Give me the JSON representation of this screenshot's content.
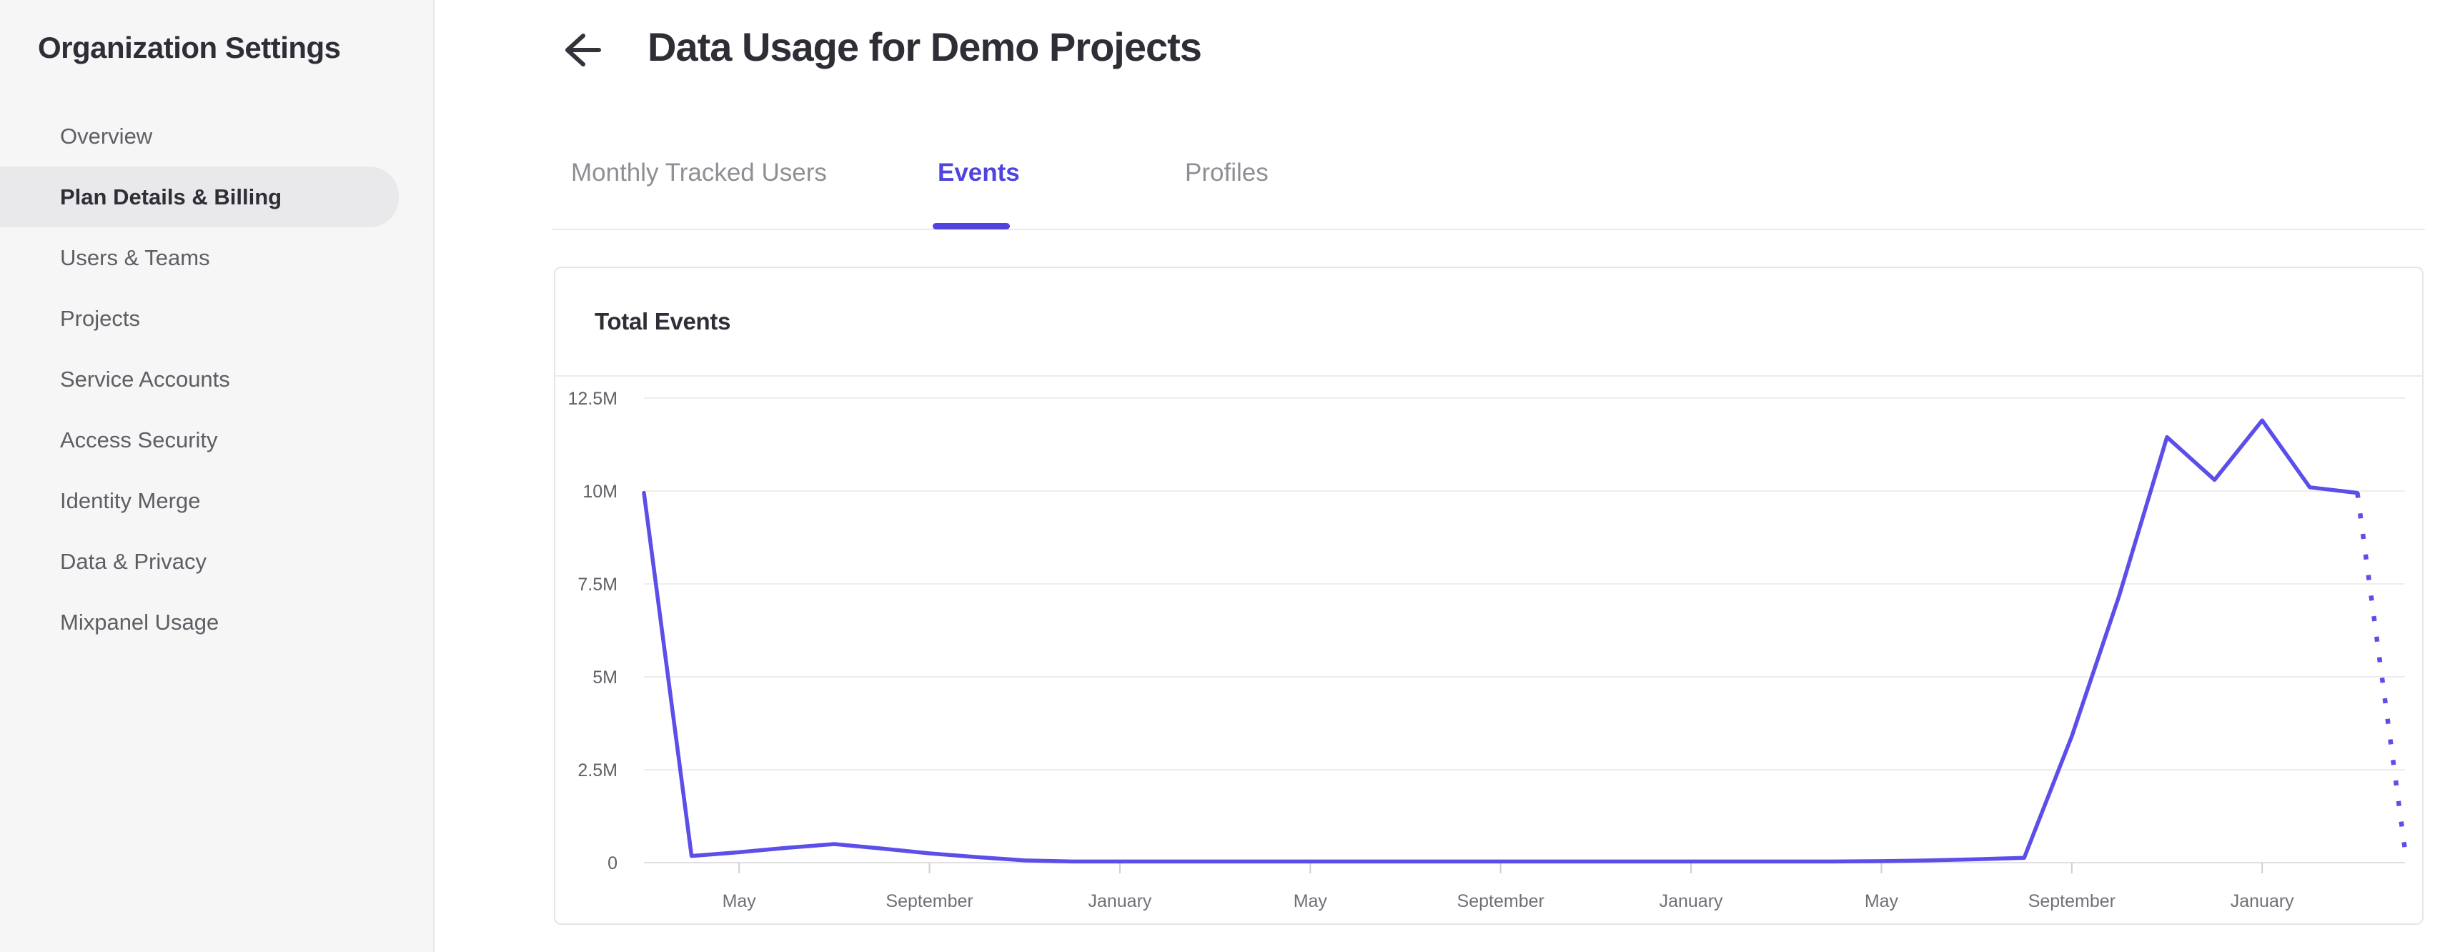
{
  "sidebar": {
    "title": "Organization Settings",
    "items": [
      {
        "label": "Overview",
        "active": false
      },
      {
        "label": "Plan Details & Billing",
        "active": true
      },
      {
        "label": "Users & Teams",
        "active": false
      },
      {
        "label": "Projects",
        "active": false
      },
      {
        "label": "Service Accounts",
        "active": false
      },
      {
        "label": "Access Security",
        "active": false
      },
      {
        "label": "Identity Merge",
        "active": false
      },
      {
        "label": "Data & Privacy",
        "active": false
      },
      {
        "label": "Mixpanel Usage",
        "active": false
      }
    ]
  },
  "header": {
    "title": "Data Usage for Demo Projects",
    "back_icon": "left-arrow"
  },
  "tabs": [
    {
      "label": "Monthly Tracked Users",
      "active": false
    },
    {
      "label": "Events",
      "active": true
    },
    {
      "label": "Profiles",
      "active": false
    }
  ],
  "card": {
    "title": "Total Events"
  },
  "colors": {
    "accent_purple": "#4f44e0",
    "chart_line_purple": "#5c4ee8",
    "gridline": "#ededef",
    "axis_line": "#e0e0e3",
    "tick_mark": "#cfcfd3",
    "y_label": "#5f5f66",
    "x_label": "#707077",
    "dark_text": "#2e2e36",
    "sidebar_bg": "#f6f6f7",
    "active_item_bg": "#e9e9eb"
  },
  "chart_data": {
    "type": "line",
    "title": "Total Events",
    "ylabel": "",
    "xlabel": "",
    "unit": "events per month",
    "ylim": [
      0,
      12.5
    ],
    "y_tick_labels": [
      "12.5M",
      "10M",
      "7.5M",
      "5M",
      "2.5M",
      "0"
    ],
    "y_tick_values": [
      12.5,
      10,
      7.5,
      5,
      2.5,
      0
    ],
    "x_tick_labels": [
      "May",
      "September",
      "January",
      "May",
      "September",
      "January",
      "May",
      "September",
      "January"
    ],
    "x_tick_point_indices": [
      2,
      6,
      10,
      14,
      18,
      22,
      26,
      30,
      34
    ],
    "points_are_monthly": true,
    "values_millions": [
      9.95,
      0.18,
      0.28,
      0.4,
      0.5,
      0.38,
      0.25,
      0.15,
      0.06,
      0.03,
      0.03,
      0.03,
      0.03,
      0.03,
      0.03,
      0.03,
      0.03,
      0.03,
      0.03,
      0.03,
      0.03,
      0.03,
      0.03,
      0.03,
      0.03,
      0.03,
      0.04,
      0.06,
      0.09,
      0.13,
      3.4,
      7.2,
      11.45,
      10.3,
      11.9,
      10.1,
      9.95,
      0.35
    ],
    "last_segment_dotted_projection": true,
    "grid": "horizontal-only",
    "legend": "none"
  }
}
